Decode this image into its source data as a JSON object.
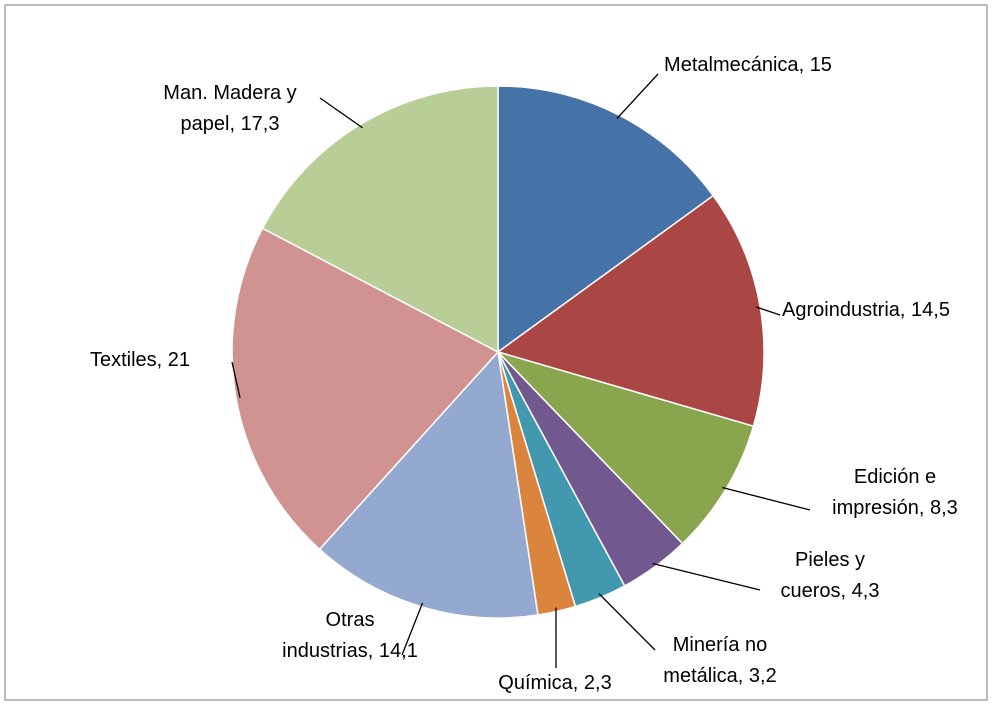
{
  "chart_data": {
    "type": "pie",
    "categories": [
      "Metalmecánica",
      "Agroindustria",
      "Edición e impresión",
      "Pieles y cueros",
      "Minería no metálica",
      "Química",
      "Otras industrias",
      "Textiles",
      "Man. Madera y papel"
    ],
    "values": [
      15,
      14.5,
      8.3,
      4.3,
      3.2,
      2.3,
      14.1,
      21,
      17.3
    ],
    "value_labels": [
      "15",
      "14,5",
      "8,3",
      "4,3",
      "3,2",
      "2,3",
      "14,1",
      "21",
      "17,3"
    ],
    "colors": [
      "#4572a7",
      "#aa4643",
      "#89a54e",
      "#71588f",
      "#4198af",
      "#db843d",
      "#93a9cf",
      "#d19392",
      "#b9cd96"
    ]
  }
}
